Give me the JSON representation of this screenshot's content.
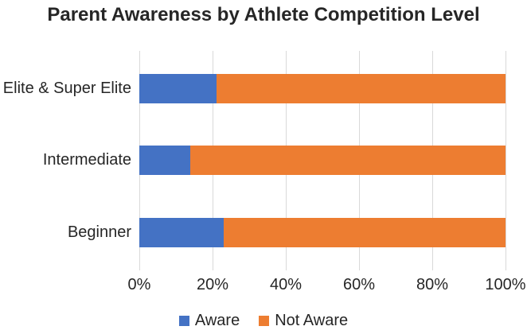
{
  "title": "Parent Awareness by Athlete Competition Level",
  "chart_data": {
    "type": "bar",
    "orientation": "horizontal",
    "stacked": true,
    "title": "Parent Awareness by Athlete Competition Level",
    "categories": [
      "Elite & Super Elite",
      "Intermediate",
      "Beginner"
    ],
    "series": [
      {
        "name": "Aware",
        "color": "#4472C4",
        "values": [
          21,
          14,
          23
        ]
      },
      {
        "name": "Not Aware",
        "color": "#ED7D31",
        "values": [
          79,
          86,
          77
        ]
      }
    ],
    "x_axis": {
      "min": 0,
      "max": 100,
      "unit": "%",
      "tick_labels": [
        "0%",
        "20%",
        "40%",
        "60%",
        "80%",
        "100%"
      ]
    },
    "grid": true,
    "gridline_color": "#d9d9d9",
    "legend_position": "bottom",
    "legend": [
      "Aware",
      "Not Aware"
    ]
  }
}
